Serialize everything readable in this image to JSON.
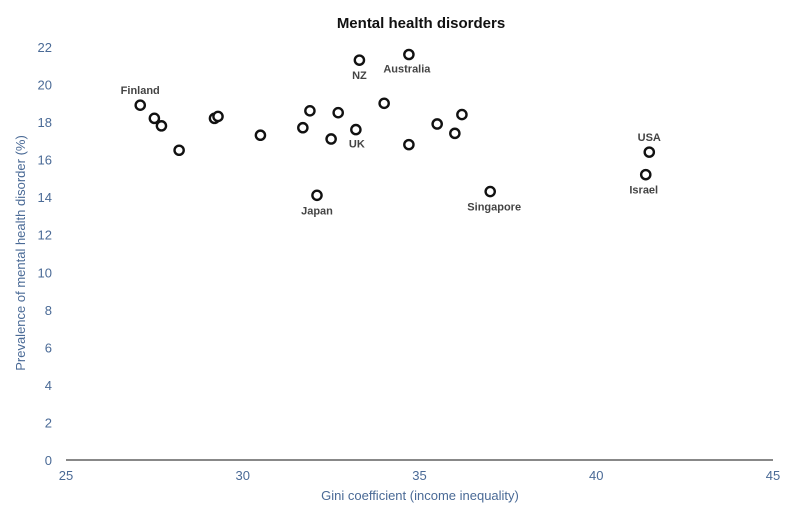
{
  "chart_data": {
    "type": "scatter",
    "title": "Mental health disorders",
    "xlabel": "Gini coefficient (income inequality)",
    "ylabel": "Prevalence of mental health disorder (%)",
    "xlim": [
      25,
      45
    ],
    "ylim": [
      0,
      22
    ],
    "xticks": [
      "25",
      "30",
      "35",
      "40",
      "45"
    ],
    "yticks": [
      "0",
      "2",
      "4",
      "6",
      "8",
      "10",
      "12",
      "14",
      "16",
      "18",
      "20",
      "22"
    ],
    "grid": false,
    "points": [
      {
        "x": 27.1,
        "y": 18.9,
        "label": "Finland"
      },
      {
        "x": 27.5,
        "y": 18.2,
        "label": ""
      },
      {
        "x": 27.7,
        "y": 17.8,
        "label": ""
      },
      {
        "x": 28.2,
        "y": 16.5,
        "label": ""
      },
      {
        "x": 29.2,
        "y": 18.2,
        "label": ""
      },
      {
        "x": 29.3,
        "y": 18.3,
        "label": ""
      },
      {
        "x": 30.5,
        "y": 17.3,
        "label": ""
      },
      {
        "x": 31.7,
        "y": 17.7,
        "label": ""
      },
      {
        "x": 31.9,
        "y": 18.6,
        "label": ""
      },
      {
        "x": 32.1,
        "y": 14.1,
        "label": "Japan"
      },
      {
        "x": 32.5,
        "y": 17.1,
        "label": ""
      },
      {
        "x": 32.7,
        "y": 18.5,
        "label": ""
      },
      {
        "x": 33.2,
        "y": 17.6,
        "label": "UK"
      },
      {
        "x": 33.3,
        "y": 21.3,
        "label": "NZ"
      },
      {
        "x": 34.0,
        "y": 19.0,
        "label": ""
      },
      {
        "x": 34.7,
        "y": 21.6,
        "label": "Australia"
      },
      {
        "x": 34.7,
        "y": 16.8,
        "label": ""
      },
      {
        "x": 35.5,
        "y": 17.9,
        "label": ""
      },
      {
        "x": 36.0,
        "y": 17.4,
        "label": ""
      },
      {
        "x": 36.2,
        "y": 18.4,
        "label": ""
      },
      {
        "x": 37.0,
        "y": 14.3,
        "label": "Singapore"
      },
      {
        "x": 41.5,
        "y": 16.4,
        "label": "USA"
      },
      {
        "x": 41.4,
        "y": 15.2,
        "label": "Israel"
      }
    ]
  }
}
